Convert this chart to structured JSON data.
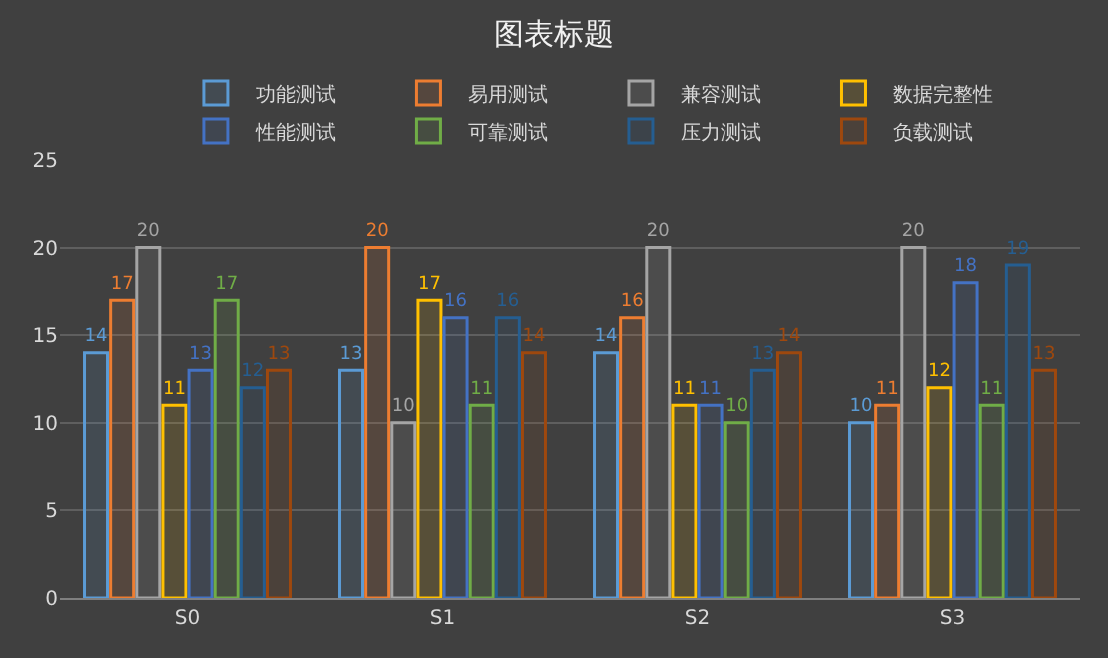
{
  "chart_data": {
    "type": "bar",
    "title": "图表标题",
    "categories": [
      "S0",
      "S1",
      "S2",
      "S3"
    ],
    "series": [
      {
        "name": "功能测试",
        "color": "#5b9bd5",
        "values": [
          14,
          13,
          14,
          10
        ]
      },
      {
        "name": "易用测试",
        "color": "#ed7d31",
        "values": [
          17,
          20,
          16,
          11
        ]
      },
      {
        "name": "兼容测试",
        "color": "#a5a5a5",
        "values": [
          20,
          10,
          20,
          20
        ]
      },
      {
        "name": "数据完整性",
        "color": "#ffc000",
        "values": [
          11,
          17,
          11,
          12
        ]
      },
      {
        "name": "性能测试",
        "color": "#4472c4",
        "values": [
          13,
          16,
          11,
          18
        ]
      },
      {
        "name": "可靠测试",
        "color": "#70ad47",
        "values": [
          17,
          11,
          10,
          11
        ]
      },
      {
        "name": "压力测试",
        "color": "#255e91",
        "values": [
          12,
          16,
          13,
          19
        ]
      },
      {
        "name": "负载测试",
        "color": "#9e480e",
        "values": [
          13,
          14,
          14,
          13
        ]
      }
    ],
    "ylim": [
      0,
      25
    ],
    "yticks": [
      0,
      5,
      10,
      15,
      20,
      25
    ],
    "grid": "y",
    "legend": "top",
    "data_labels": true
  }
}
